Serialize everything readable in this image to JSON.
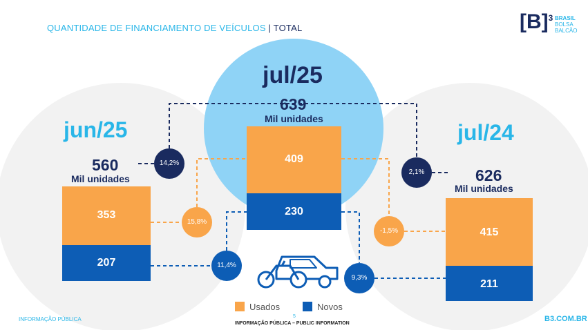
{
  "header": {
    "title": "QUANTIDADE DE FINANCIAMENTO DE VEÍCULOS",
    "title_suffix": "| TOTAL",
    "logo": {
      "mark": "[B]",
      "sup": "3",
      "line1": "BRASIL",
      "line2": "BOLSA",
      "line3": "BALCÃO"
    }
  },
  "periods": {
    "jun25": {
      "label": "jun/25",
      "total": "560",
      "unit": "Mil unidades",
      "usados": "353",
      "novos": "207"
    },
    "jul25": {
      "label": "jul/25",
      "total": "639",
      "unit": "Mil unidades",
      "usados": "409",
      "novos": "230"
    },
    "jul24": {
      "label": "jul/24",
      "total": "626",
      "unit": "Mil unidades",
      "usados": "415",
      "novos": "211"
    }
  },
  "variations": {
    "mom_total": "14,2%",
    "mom_usados": "15,8%",
    "mom_novos": "11,4%",
    "yoy_total": "2,1%",
    "yoy_usados": "-1,5%",
    "yoy_novos": "9,3%"
  },
  "legend": {
    "usados": "Usados",
    "novos": "Novos"
  },
  "colors": {
    "usados": "#f9a54a",
    "novos": "#0d5db5",
    "navy": "#1a2b5f",
    "cyan": "#29b6e8",
    "light_blue": "#8fd3f6",
    "gray": "#f2f2f2"
  },
  "footer": {
    "left": "INFORMAÇÃO PÚBLICA",
    "page": "5",
    "center": "INFORMAÇÃO PÚBLICA – PUBLIC INFORMATION",
    "right": "B3.COM.BR"
  }
}
